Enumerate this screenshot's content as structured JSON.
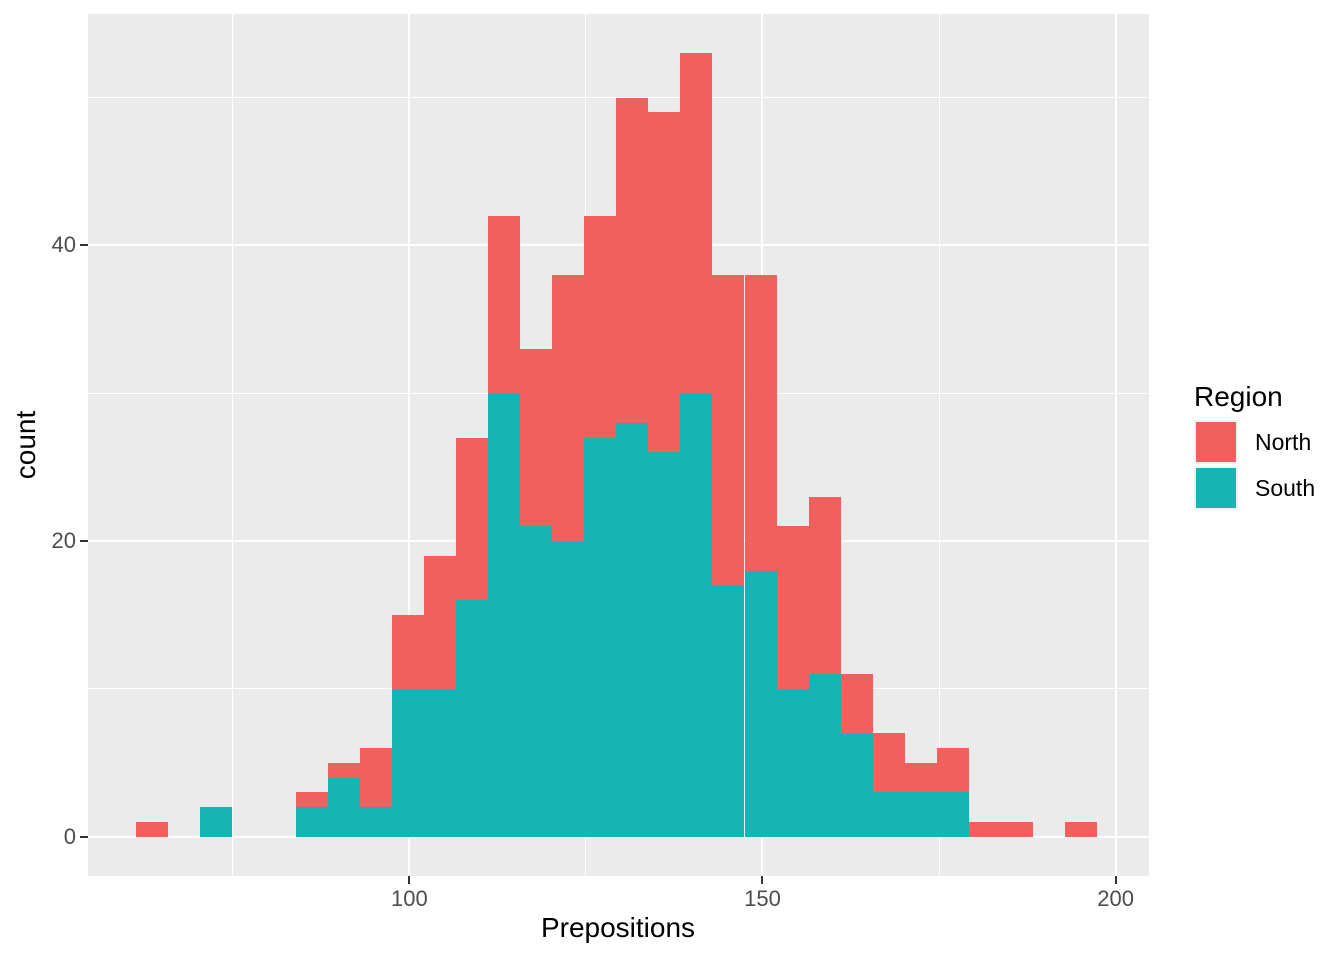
{
  "figure": {
    "background": "#FFFFFF"
  },
  "chart_data": {
    "type": "bar",
    "subtype": "stacked-histogram",
    "title": "",
    "xlabel": "Prepositions",
    "ylabel": "count",
    "legend": {
      "title": "Region",
      "position": "right",
      "items": [
        {
          "label": "North",
          "color": "#F2605D"
        },
        {
          "label": "South",
          "color": "#18B3B5"
        }
      ]
    },
    "panel": {
      "background": "#EBEBEB",
      "gridline_color": "#FFFFFF",
      "tick_color": "#333333",
      "tick_label_color": "#4D4D4D"
    },
    "x_domain": [
      54.5,
      204.73
    ],
    "y_domain": [
      -2.65,
      55.65
    ],
    "x_ticks": {
      "major": [
        100,
        150,
        200
      ],
      "minor": [
        75,
        125,
        175
      ],
      "labels": [
        "100",
        "150",
        "200"
      ]
    },
    "y_ticks": {
      "major": [
        0,
        20,
        40
      ],
      "minor": [
        10,
        30,
        50
      ],
      "labels": [
        "0",
        "20",
        "40"
      ]
    },
    "bins": {
      "start": 61.33,
      "width": 4.533,
      "stack_order_bottom_to_top": [
        "South",
        "North"
      ],
      "series": [
        {
          "name": "North",
          "color": "#F2605D",
          "values": [
            1,
            0,
            0,
            0,
            0,
            1,
            1,
            4,
            5,
            9,
            11,
            12,
            12,
            18,
            15,
            22,
            23,
            23,
            21,
            20,
            11,
            12,
            4,
            4,
            2,
            3,
            1,
            1,
            0,
            1
          ]
        },
        {
          "name": "South",
          "color": "#18B3B5",
          "values": [
            0,
            0,
            2,
            0,
            0,
            2,
            4,
            2,
            10,
            10,
            16,
            30,
            21,
            20,
            27,
            28,
            26,
            30,
            17,
            18,
            10,
            11,
            7,
            3,
            3,
            3,
            0,
            0,
            0,
            0
          ]
        }
      ],
      "totals": [
        1,
        0,
        2,
        0,
        0,
        3,
        5,
        6,
        15,
        19,
        27,
        42,
        33,
        38,
        42,
        50,
        49,
        53,
        38,
        38,
        21,
        23,
        11,
        7,
        5,
        6,
        1,
        1,
        0,
        1
      ]
    }
  }
}
